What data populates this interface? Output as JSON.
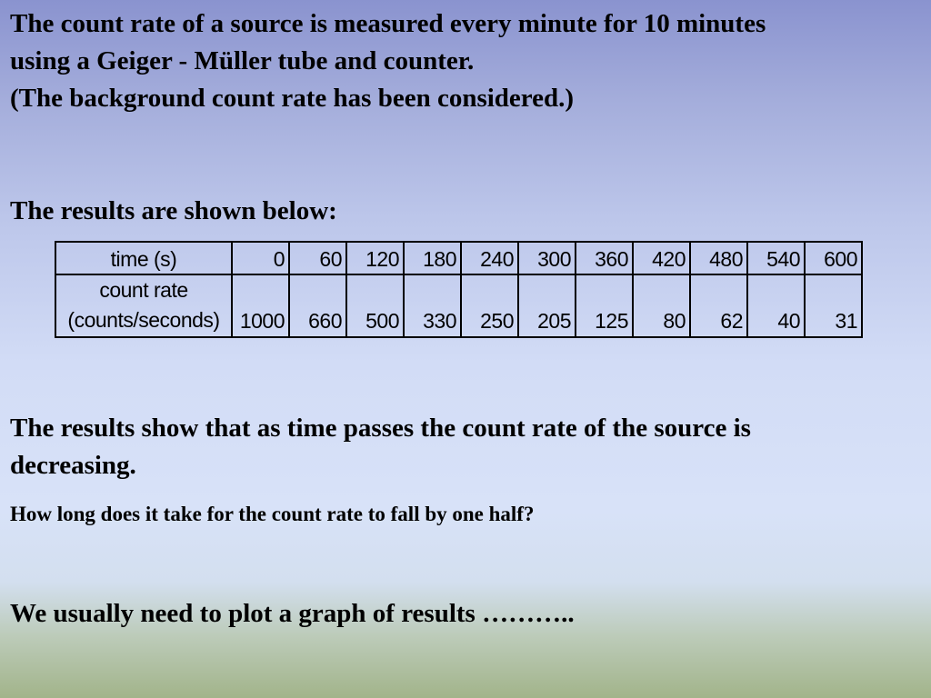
{
  "intro": {
    "line1": "The count rate of a source is measured every minute for 10 minutes",
    "line2": "using a Geiger - Müller tube and counter.",
    "line3": "(The background count rate has been considered.)"
  },
  "results_heading": "The results are shown below:",
  "table": {
    "time_label": "time (s)",
    "rate_label_line1": "count rate",
    "rate_label_line2": "(counts/seconds)",
    "times": [
      "0",
      "60",
      "120",
      "180",
      "240",
      "300",
      "360",
      "420",
      "480",
      "540",
      "600"
    ],
    "rates": [
      "1000",
      "660",
      "500",
      "330",
      "250",
      "205",
      "125",
      "80",
      "62",
      "40",
      "31"
    ]
  },
  "conclusion": {
    "line1": "The results show that as time passes the count rate of the source is",
    "line2": "decreasing."
  },
  "question": "How long does it take for the count rate to fall by one half?",
  "plot_note": "We usually need to plot a graph of results ………..",
  "chart_data": {
    "type": "table",
    "columns": [
      "time (s)",
      "count rate (counts/seconds)"
    ],
    "x": [
      0,
      60,
      120,
      180,
      240,
      300,
      360,
      420,
      480,
      540,
      600
    ],
    "y": [
      1000,
      660,
      500,
      330,
      250,
      205,
      125,
      80,
      62,
      40,
      31
    ]
  }
}
